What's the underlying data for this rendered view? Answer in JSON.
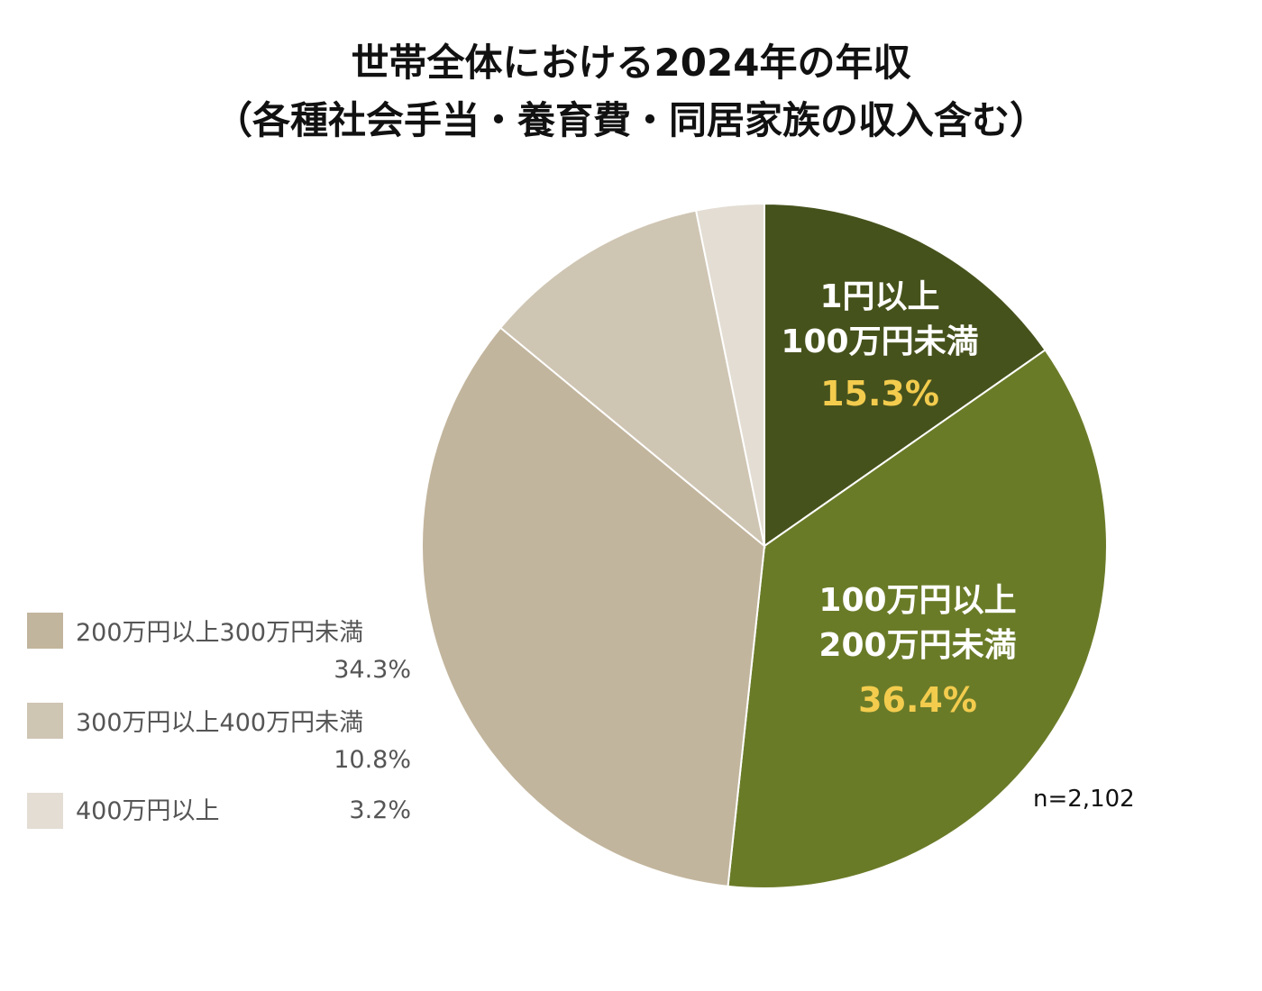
{
  "chart_data": {
    "type": "pie",
    "title": "世帯全体における2024年の年収",
    "subtitle": "（各種社会手当・養育費・同居家族の収入含む）",
    "slices": [
      {
        "name_lines": [
          "1円以上",
          "100万円未満"
        ],
        "legend_label": "",
        "value": 15.3,
        "value_label": "15.3%",
        "color": "#46521c"
      },
      {
        "name_lines": [
          "100万円以上",
          "200万円未満"
        ],
        "legend_label": "",
        "value": 36.4,
        "value_label": "36.4%",
        "color": "#6a7b28"
      },
      {
        "name_lines": [],
        "legend_label": "200万円以上300万円未満",
        "value": 34.3,
        "value_label": "34.3%",
        "color": "#c2b59d"
      },
      {
        "name_lines": [],
        "legend_label": "300万円以上400万円未満",
        "value": 10.8,
        "value_label": "10.8%",
        "color": "#cfc5b3"
      },
      {
        "name_lines": [],
        "legend_label": "400万円以上",
        "value": 3.2,
        "value_label": "3.2%",
        "color": "#e3ddd3"
      }
    ],
    "start_angle": "12 o'clock",
    "direction": "clockwise",
    "legend_placement": "left",
    "label_color": "#ffffff",
    "value_color": "#f3cc4e",
    "note": "n=2,102"
  }
}
